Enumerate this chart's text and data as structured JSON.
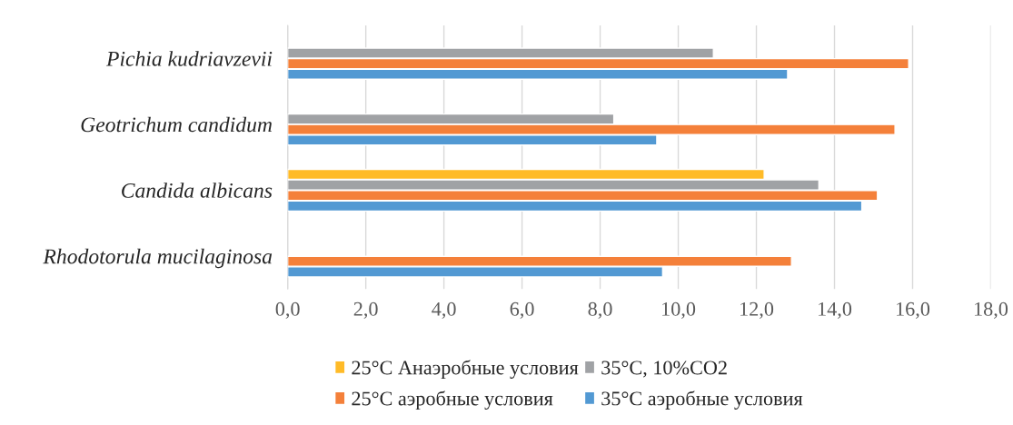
{
  "chart_data": {
    "type": "bar",
    "orientation": "horizontal",
    "categories": [
      "Pichia kudriavzevii",
      "Geotrichum candidum",
      "Candida albicans",
      "Rhodotorula mucilaginosa"
    ],
    "series": [
      {
        "name": "25°C Анаэробные условия",
        "color": "#ffbb28",
        "values": [
          null,
          null,
          12.2,
          null
        ]
      },
      {
        "name": "35°C, 10%CO2",
        "color": "#a0a2a5",
        "values": [
          10.9,
          8.35,
          13.6,
          null
        ]
      },
      {
        "name": "25°C аэробные условия",
        "color": "#f4803a",
        "values": [
          15.9,
          15.55,
          15.1,
          12.9
        ]
      },
      {
        "name": "35°C аэробные условия",
        "color": "#5299d3",
        "values": [
          12.8,
          9.45,
          14.7,
          9.6
        ]
      }
    ],
    "xlim": [
      0,
      18
    ],
    "xticks": [
      {
        "value": 0,
        "label": "0,0"
      },
      {
        "value": 2,
        "label": "2,0"
      },
      {
        "value": 4,
        "label": "4,0"
      },
      {
        "value": 6,
        "label": "6,0"
      },
      {
        "value": 8,
        "label": "8,0"
      },
      {
        "value": 10,
        "label": "10,0"
      },
      {
        "value": 12,
        "label": "12,0"
      },
      {
        "value": 14,
        "label": "14,0"
      },
      {
        "value": 16,
        "label": "16,0"
      },
      {
        "value": 18,
        "label": "18,0"
      }
    ],
    "grid": "x",
    "legend": "bottom"
  }
}
